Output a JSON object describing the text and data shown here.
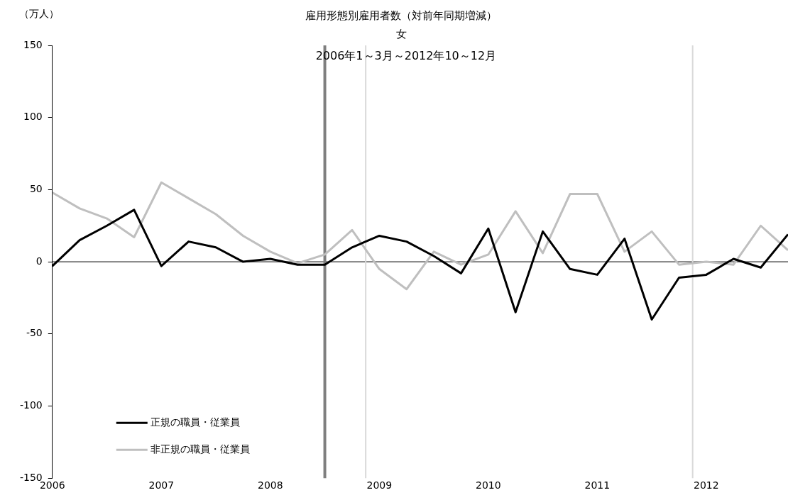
{
  "chart_data": {
    "type": "line",
    "title": "雇用形態別雇用者数（対前年同期増減）",
    "subtitle": "女",
    "ylabel": "（万人）",
    "annotations": [
      "2006年1～3月～2012年10～12月"
    ],
    "x": [
      2006,
      2006.25,
      2006.5,
      2006.75,
      2007,
      2007.25,
      2007.5,
      2007.75,
      2008,
      2008.25,
      2008.5,
      2008.75,
      2009,
      2009.25,
      2009.5,
      2009.75,
      2010,
      2010.25,
      2010.5,
      2010.75,
      2011,
      2011.25,
      2011.5,
      2011.75,
      2012,
      2012.25,
      2012.5,
      2012.75
    ],
    "series": [
      {
        "name": "正規の職員・従業員",
        "color": "#000000",
        "values": [
          -3,
          15,
          25,
          36,
          -3,
          14,
          10,
          0,
          2,
          -2,
          -2,
          10,
          18,
          14,
          4,
          -8,
          23,
          -35,
          21,
          -5,
          -9,
          16,
          -40,
          -11,
          -9,
          2,
          -4,
          19
        ]
      },
      {
        "name": "非正規の職員・従業員",
        "color": "#bfbfbf",
        "values": [
          48,
          37,
          30,
          17,
          55,
          44,
          33,
          18,
          7,
          -1,
          5,
          22,
          -5,
          -19,
          7,
          -2,
          5,
          35,
          6,
          47,
          47,
          7,
          21,
          -2,
          0,
          -2,
          25,
          8
        ]
      }
    ],
    "xlim": [
      2006,
      2012.75
    ],
    "xticks": [
      2006,
      2007,
      2008,
      2009,
      2010,
      2011,
      2012
    ],
    "ylim": [
      -150,
      150
    ],
    "yticks": [
      -150,
      -100,
      -50,
      0,
      50,
      100,
      150
    ],
    "ref_lines": [
      {
        "axis": "y",
        "value": 0,
        "color": "#000000"
      },
      {
        "axis": "x",
        "value": 2008.5,
        "color": "#7f7f7f"
      },
      {
        "axis": "x",
        "value": 2008.875,
        "color": "#d9d9d9"
      },
      {
        "axis": "x",
        "value": 2011.875,
        "color": "#d9d9d9"
      }
    ],
    "grid": false,
    "legend": "bottom left",
    "marker": "none",
    "line_style": "solid"
  }
}
